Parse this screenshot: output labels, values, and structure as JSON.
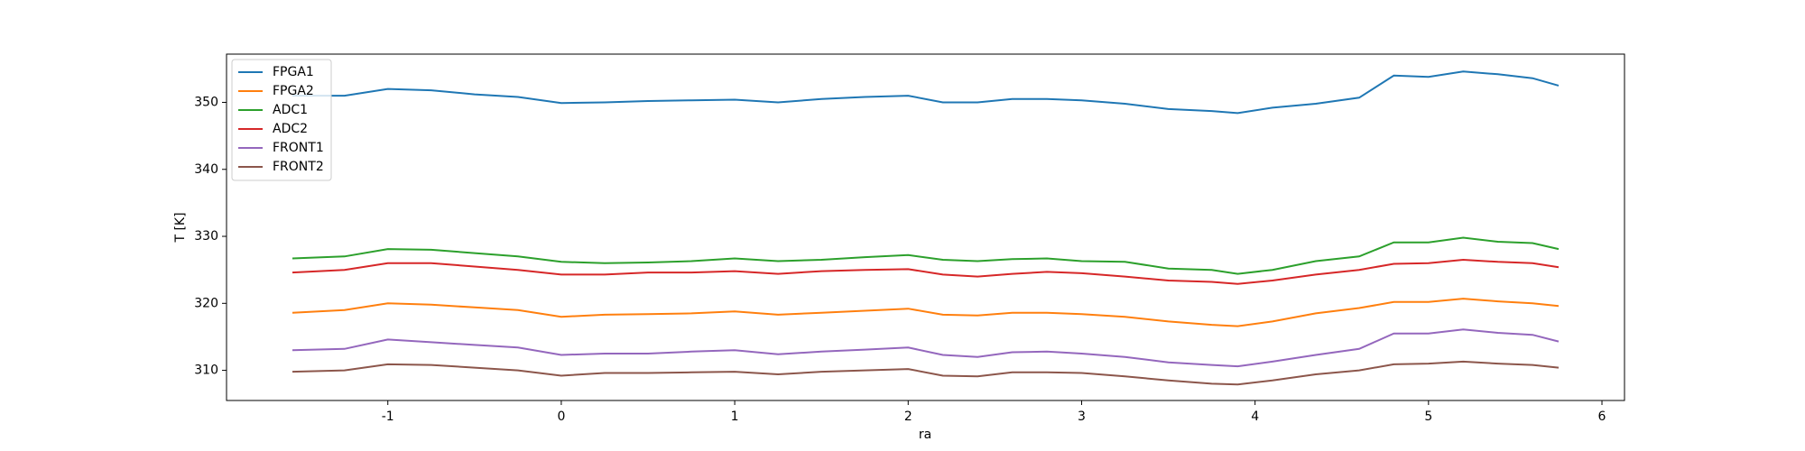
{
  "chart_data": {
    "type": "line",
    "x_label": "ra",
    "y_label": "T [K]",
    "x": [
      -1.55,
      -1.25,
      -1,
      -0.75,
      -0.5,
      -0.25,
      0,
      0.25,
      0.5,
      0.75,
      1,
      1.25,
      1.5,
      1.75,
      2,
      2.2,
      2.4,
      2.6,
      2.8,
      3,
      3.25,
      3.5,
      3.75,
      3.9,
      4.1,
      4.35,
      4.6,
      4.8,
      5.0,
      5.2,
      5.4,
      5.6,
      5.75
    ],
    "series": [
      {
        "name": "FPGA1",
        "color": "#1f77b4",
        "values": [
          351,
          351,
          352,
          351.8,
          351.2,
          350.8,
          349.9,
          350,
          350.2,
          350.3,
          350.4,
          350,
          350.5,
          350.8,
          351,
          350,
          350,
          350.5,
          350.5,
          350.3,
          349.8,
          349,
          348.7,
          348.4,
          349.2,
          349.8,
          350.7,
          354,
          353.8,
          354.6,
          354.2,
          353.6,
          352.5
        ]
      },
      {
        "name": "FPGA2",
        "color": "#ff7f0e",
        "values": [
          318.6,
          319,
          320,
          319.8,
          319.4,
          319,
          318,
          318.3,
          318.4,
          318.5,
          318.8,
          318.3,
          318.6,
          318.9,
          319.2,
          318.3,
          318.2,
          318.6,
          318.6,
          318.4,
          318,
          317.3,
          316.8,
          316.6,
          317.3,
          318.5,
          319.3,
          320.2,
          320.2,
          320.7,
          320.3,
          320,
          319.6
        ]
      },
      {
        "name": "ADC1",
        "color": "#2ca02c",
        "values": [
          326.7,
          327,
          328.1,
          328,
          327.5,
          327,
          326.2,
          326,
          326.1,
          326.3,
          326.7,
          326.3,
          326.5,
          326.9,
          327.2,
          326.5,
          326.3,
          326.6,
          326.7,
          326.3,
          326.2,
          325.2,
          325,
          324.4,
          325,
          326.3,
          327,
          329.1,
          329.1,
          329.8,
          329.2,
          329,
          328.1
        ]
      },
      {
        "name": "ADC2",
        "color": "#d62728",
        "values": [
          324.6,
          325,
          326,
          326,
          325.5,
          325,
          324.3,
          324.3,
          324.6,
          324.6,
          324.8,
          324.4,
          324.8,
          325,
          325.1,
          324.3,
          324,
          324.4,
          324.7,
          324.5,
          324,
          323.4,
          323.2,
          322.9,
          323.4,
          324.3,
          325,
          325.9,
          326,
          326.5,
          326.2,
          326,
          325.4
        ]
      },
      {
        "name": "FRONT1",
        "color": "#9467bd",
        "values": [
          313,
          313.2,
          314.6,
          314.2,
          313.8,
          313.4,
          312.3,
          312.5,
          312.5,
          312.8,
          313,
          312.4,
          312.8,
          313.1,
          313.4,
          312.3,
          312,
          312.7,
          312.8,
          312.5,
          312,
          311.2,
          310.8,
          310.6,
          311.3,
          312.3,
          313.2,
          315.5,
          315.5,
          316.1,
          315.6,
          315.3,
          314.3
        ]
      },
      {
        "name": "FRONT2",
        "color": "#8c564b",
        "values": [
          309.8,
          310,
          310.9,
          310.8,
          310.4,
          310,
          309.2,
          309.6,
          309.6,
          309.7,
          309.8,
          309.4,
          309.8,
          310,
          310.2,
          309.2,
          309.1,
          309.7,
          309.7,
          309.6,
          309.1,
          308.5,
          308,
          307.9,
          308.5,
          309.4,
          310,
          310.9,
          311,
          311.3,
          311,
          310.8,
          310.4
        ]
      }
    ],
    "xlim": [
      -1.93,
      6.13
    ],
    "xticks": [
      -1,
      0,
      1,
      2,
      3,
      4,
      5,
      6
    ],
    "ylim": [
      305.5,
      357.2
    ],
    "yticks": [
      310,
      320,
      330,
      340,
      350
    ],
    "legend": "upper-left"
  }
}
